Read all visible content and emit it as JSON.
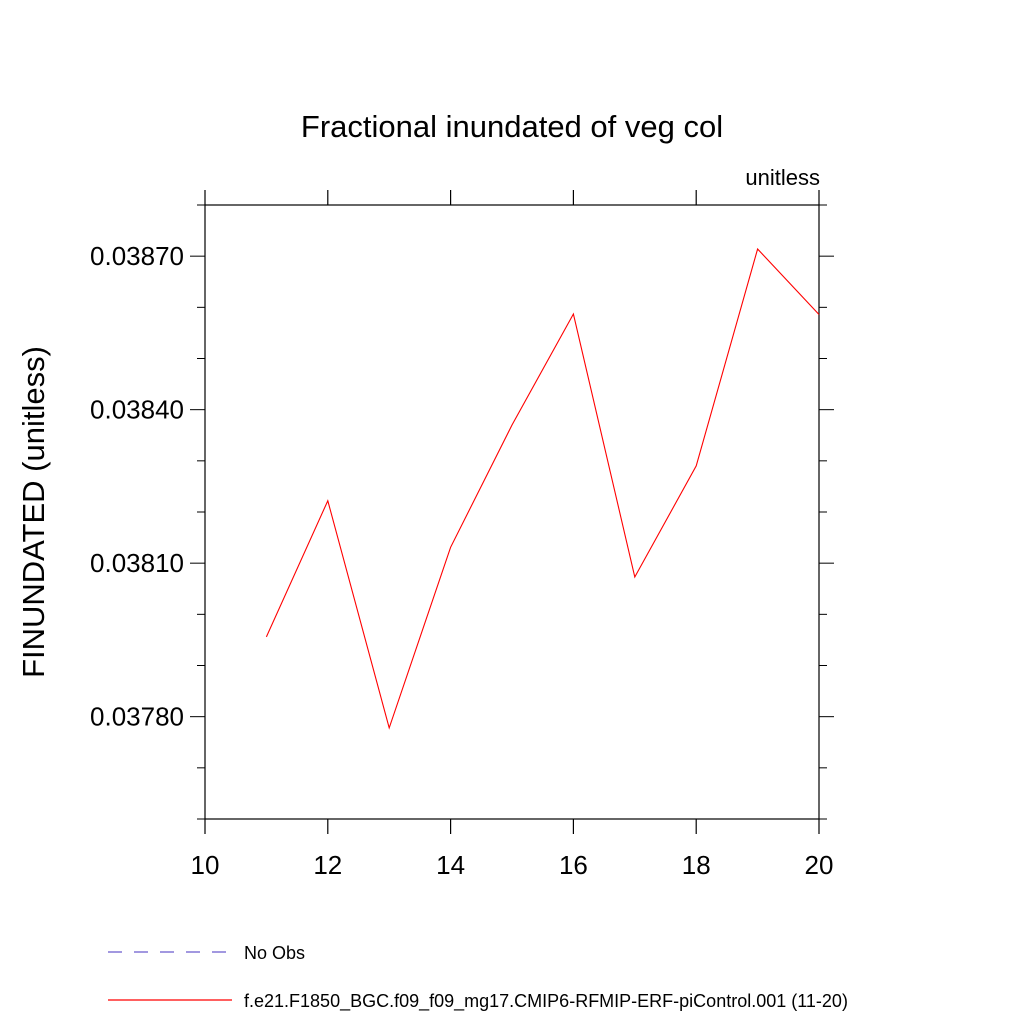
{
  "chart_data": {
    "type": "line",
    "title": "Fractional inundated of veg col",
    "units_label": "unitless",
    "ylabel": "FINUNDATED  (unitless)",
    "xlabel": "",
    "xlim": [
      10,
      20
    ],
    "ylim": [
      0.0376,
      0.0388
    ],
    "x_ticks": [
      10,
      12,
      14,
      16,
      18,
      20
    ],
    "x_tick_labels": [
      "10",
      "12",
      "14",
      "16",
      "18",
      "20"
    ],
    "y_ticks": [
      0.0378,
      0.0381,
      0.0384,
      0.0387
    ],
    "y_tick_labels": [
      "0.03780",
      "0.03810",
      "0.03840",
      "0.03870"
    ],
    "series": [
      {
        "name": "f.e21.F1850_BGC.f09_f09_mg17.CMIP6-RFMIP-ERF-piControl.001 (11-20)",
        "color": "#ff0000",
        "x": [
          11,
          12,
          13,
          14,
          15,
          16,
          17,
          18,
          19,
          20
        ],
        "values": [
          0.037956,
          0.038222,
          0.037778,
          0.038131,
          0.03837,
          0.038587,
          0.038073,
          0.03829,
          0.038714,
          0.038586
        ]
      }
    ],
    "legend": [
      {
        "label": "No Obs",
        "color": "#6a5acd",
        "style": "dashed"
      },
      {
        "label": "f.e21.F1850_BGC.f09_f09_mg17.CMIP6-RFMIP-ERF-piControl.001 (11-20)",
        "color": "#ff0000",
        "style": "solid"
      }
    ],
    "legend_position": "bottom-left",
    "grid": false
  }
}
